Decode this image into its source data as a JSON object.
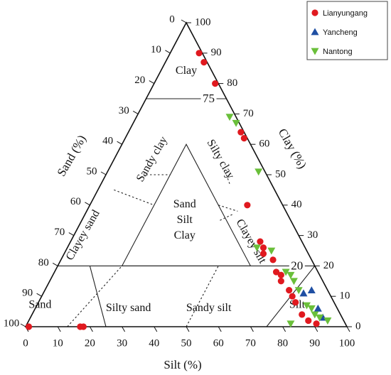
{
  "chart_data": {
    "type": "scatter",
    "subtype": "ternary",
    "title": "",
    "axes": {
      "sand": {
        "label": "Sand (%)",
        "ticks": [
          0,
          10,
          20,
          30,
          40,
          50,
          60,
          70,
          80,
          90,
          100
        ]
      },
      "silt": {
        "label": "Silt (%)",
        "ticks": [
          0,
          10,
          20,
          30,
          40,
          50,
          60,
          70,
          80,
          90,
          100
        ]
      },
      "clay": {
        "label": "Clay (%)",
        "ticks": [
          0,
          10,
          20,
          30,
          40,
          50,
          60,
          70,
          80,
          90,
          100
        ]
      }
    },
    "boundary_labels": [
      {
        "text": "75",
        "clay": 75
      },
      {
        "text": "20",
        "clay": 20
      }
    ],
    "regions": [
      {
        "name": "Clay",
        "lines": [
          "Clay"
        ],
        "clay": 84,
        "silt": 8
      },
      {
        "name": "Sandy clay",
        "lines": [
          "Sandy clay"
        ],
        "clay": 55,
        "silt": 12,
        "rotate": -60
      },
      {
        "name": "Silty clay",
        "lines": [
          "Silty clay"
        ],
        "clay": 55,
        "silt": 33,
        "rotate": 60
      },
      {
        "name": "Sand Silt Clay",
        "lines": [
          "Sand",
          "Silt",
          "Clay"
        ],
        "clay": 35,
        "silt": 32
      },
      {
        "name": "Clayey sand",
        "lines": [
          "Clayey sand"
        ],
        "clay": 30,
        "silt": 3,
        "rotate": -60
      },
      {
        "name": "Clayey silt",
        "lines": [
          "Clayey silt"
        ],
        "clay": 28,
        "silt": 56,
        "rotate": 60
      },
      {
        "name": "Sand",
        "lines": [
          "Sand"
        ],
        "clay": 7,
        "silt": 1
      },
      {
        "name": "Silty sand",
        "lines": [
          "Silty sand"
        ],
        "clay": 6,
        "silt": 29
      },
      {
        "name": "Sandy silt",
        "lines": [
          "Sandy silt"
        ],
        "clay": 6,
        "silt": 54
      },
      {
        "name": "Silt",
        "lines": [
          "Silt"
        ],
        "clay": 7,
        "silt": 81
      }
    ],
    "legend": {
      "position": "top-right"
    },
    "series": [
      {
        "name": "Lianyungang",
        "marker": "circle",
        "color": "#e0191f",
        "points": [
          {
            "silt": 1,
            "clay": 0
          },
          {
            "silt": 17,
            "clay": 0
          },
          {
            "silt": 18,
            "clay": 0
          },
          {
            "silt": 9,
            "clay": 90
          },
          {
            "silt": 12,
            "clay": 87
          },
          {
            "silt": 19,
            "clay": 80
          },
          {
            "silt": 35,
            "clay": 64
          },
          {
            "silt": 37,
            "clay": 62
          },
          {
            "silt": 49,
            "clay": 40
          },
          {
            "silt": 59,
            "clay": 28
          },
          {
            "silt": 61,
            "clay": 26
          },
          {
            "silt": 62,
            "clay": 24
          },
          {
            "silt": 66,
            "clay": 22
          },
          {
            "silt": 69,
            "clay": 18
          },
          {
            "silt": 71,
            "clay": 17
          },
          {
            "silt": 72,
            "clay": 15
          },
          {
            "silt": 76,
            "clay": 12
          },
          {
            "silt": 78,
            "clay": 10
          },
          {
            "silt": 80,
            "clay": 8
          },
          {
            "silt": 84,
            "clay": 4
          },
          {
            "silt": 87,
            "clay": 2
          },
          {
            "silt": 90,
            "clay": 1
          }
        ]
      },
      {
        "name": "Yancheng",
        "marker": "triangle-up",
        "color": "#1f4fa3",
        "points": [
          {
            "silt": 81,
            "clay": 11
          },
          {
            "silt": 83,
            "clay": 12
          },
          {
            "silt": 88,
            "clay": 6
          },
          {
            "silt": 91,
            "clay": 3
          }
        ]
      },
      {
        "name": "Nantong",
        "marker": "triangle-down",
        "color": "#6abf3a",
        "points": [
          {
            "silt": 29,
            "clay": 69
          },
          {
            "silt": 32,
            "clay": 67
          },
          {
            "silt": 47,
            "clay": 51
          },
          {
            "silt": 59,
            "clay": 26
          },
          {
            "silt": 64,
            "clay": 25
          },
          {
            "silt": 72,
            "clay": 18
          },
          {
            "silt": 74,
            "clay": 17
          },
          {
            "silt": 76,
            "clay": 15
          },
          {
            "silt": 79,
            "clay": 12
          },
          {
            "silt": 84,
            "clay": 7
          },
          {
            "silt": 86,
            "clay": 6
          },
          {
            "silt": 88,
            "clay": 4
          },
          {
            "silt": 90,
            "clay": 3
          },
          {
            "silt": 82,
            "clay": 1
          },
          {
            "silt": 93,
            "clay": 2
          }
        ]
      }
    ]
  }
}
